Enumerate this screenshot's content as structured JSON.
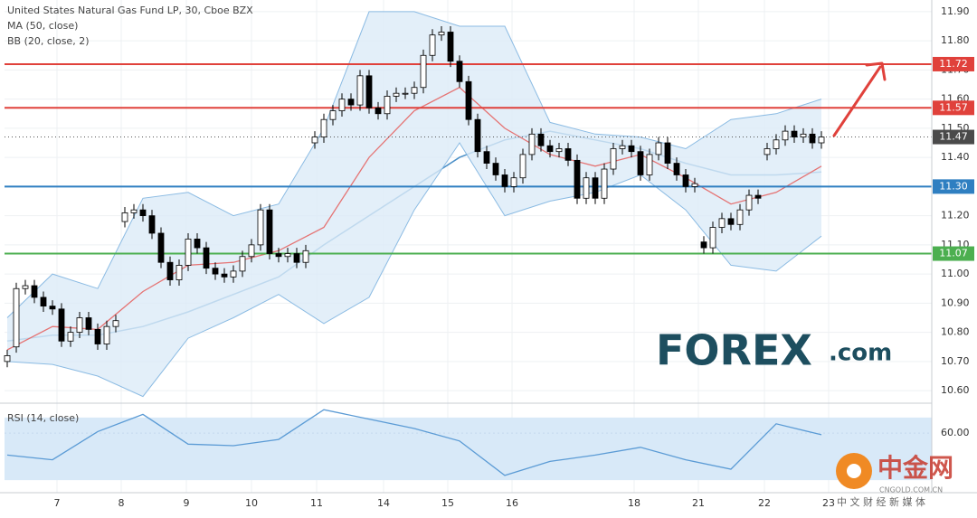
{
  "chart_data": [
    {
      "type": "candlestick",
      "title": "United States Natural Gas Fund LP, 30, Cboe BZX",
      "xlim": [
        -0.3,
        102.2
      ],
      "ylim": [
        10.56,
        11.94
      ],
      "xticks": [
        {
          "value": 5.5,
          "label": "7"
        },
        {
          "value": 12.6,
          "label": "8"
        },
        {
          "value": 19.8,
          "label": "9"
        },
        {
          "value": 27,
          "label": "10"
        },
        {
          "value": 34.2,
          "label": "11"
        },
        {
          "value": 41.6,
          "label": "14"
        },
        {
          "value": 48.7,
          "label": "15"
        },
        {
          "value": 55.8,
          "label": "16"
        },
        {
          "value": 69.3,
          "label": "18"
        },
        {
          "value": 76.4,
          "label": "21"
        },
        {
          "value": 83.7,
          "label": "22"
        },
        {
          "value": 90.8,
          "label": "23"
        }
      ],
      "yticks": [
        {
          "value": 10.6,
          "label": "10.60"
        },
        {
          "value": 10.7,
          "label": "10.70"
        },
        {
          "value": 10.8,
          "label": "10.80"
        },
        {
          "value": 10.9,
          "label": "10.90"
        },
        {
          "value": 11.0,
          "label": "11.00"
        },
        {
          "value": 11.1,
          "label": "11.10"
        },
        {
          "value": 11.2,
          "label": "11.20"
        },
        {
          "value": 11.3,
          "label": "11.30"
        },
        {
          "value": 11.4,
          "label": "11.40"
        },
        {
          "value": 11.5,
          "label": "11.50"
        },
        {
          "value": 11.6,
          "label": "11.60"
        },
        {
          "value": 11.7,
          "label": "11.70"
        },
        {
          "value": 11.8,
          "label": "11.80"
        },
        {
          "value": 11.9,
          "label": "11.90"
        }
      ],
      "grid": true,
      "up_color": "#ffffff",
      "down_color": "#000000",
      "open": [
        10.7,
        10.75,
        10.95,
        10.96,
        10.92,
        10.89,
        10.88,
        10.77,
        10.8,
        10.85,
        10.81,
        10.76,
        10.82,
        11.18,
        11.21,
        11.22,
        11.2,
        11.14,
        11.04,
        10.98,
        11.03,
        11.12,
        11.09,
        11.02,
        11.0,
        10.99,
        11.01,
        11.06,
        11.1,
        11.22,
        11.07,
        11.06,
        11.07,
        11.04,
        11.45,
        11.47,
        11.53,
        11.56,
        11.6,
        11.58,
        11.68,
        11.57,
        11.55,
        11.61,
        11.62,
        11.62,
        11.64,
        11.75,
        11.82,
        11.83,
        11.73,
        11.66,
        11.53,
        11.42,
        11.38,
        11.34,
        11.3,
        11.33,
        11.41,
        11.48,
        11.44,
        11.42,
        11.43,
        11.39,
        11.26,
        11.33,
        11.26,
        11.36,
        11.43,
        11.44,
        11.42,
        11.34,
        11.41,
        11.45,
        11.38,
        11.34,
        11.3,
        11.11,
        11.09,
        11.16,
        11.19,
        11.17,
        11.22,
        11.27,
        11.41,
        11.43,
        11.46,
        11.49,
        11.47,
        11.48,
        11.45
      ],
      "high": [
        10.74,
        10.97,
        10.98,
        10.98,
        10.94,
        10.91,
        10.9,
        10.82,
        10.87,
        10.87,
        10.83,
        10.84,
        10.86,
        11.23,
        11.24,
        11.24,
        11.22,
        11.16,
        11.06,
        11.05,
        11.14,
        11.14,
        11.11,
        11.04,
        11.02,
        11.03,
        11.08,
        11.12,
        11.24,
        11.24,
        11.09,
        11.09,
        11.09,
        11.1,
        11.49,
        11.55,
        11.58,
        11.62,
        11.62,
        11.7,
        11.7,
        11.59,
        11.63,
        11.64,
        11.64,
        11.66,
        11.77,
        11.84,
        11.85,
        11.85,
        11.75,
        11.68,
        11.55,
        11.44,
        11.4,
        11.36,
        11.35,
        11.43,
        11.5,
        11.5,
        11.46,
        11.45,
        11.45,
        11.41,
        11.35,
        11.35,
        11.38,
        11.45,
        11.46,
        11.46,
        11.44,
        11.43,
        11.47,
        11.47,
        11.4,
        11.36,
        11.33,
        11.13,
        11.18,
        11.21,
        11.21,
        11.24,
        11.29,
        11.29,
        11.45,
        11.48,
        11.51,
        11.51,
        11.5,
        11.5,
        11.49
      ],
      "low": [
        10.68,
        10.73,
        10.93,
        10.9,
        10.87,
        10.86,
        10.75,
        10.75,
        10.78,
        10.79,
        10.74,
        10.74,
        10.8,
        11.16,
        11.19,
        11.18,
        11.12,
        11.02,
        10.96,
        10.96,
        11.01,
        11.07,
        11.0,
        10.98,
        10.97,
        10.97,
        10.99,
        11.04,
        11.08,
        11.05,
        11.04,
        11.04,
        11.02,
        11.02,
        11.43,
        11.45,
        11.51,
        11.54,
        11.56,
        11.56,
        11.55,
        11.53,
        11.53,
        11.59,
        11.6,
        11.6,
        11.62,
        11.73,
        11.8,
        11.71,
        11.64,
        11.51,
        11.4,
        11.36,
        11.32,
        11.28,
        11.28,
        11.31,
        11.39,
        11.42,
        11.4,
        11.4,
        11.37,
        11.24,
        11.24,
        11.24,
        11.24,
        11.34,
        11.41,
        11.4,
        11.32,
        11.32,
        11.39,
        11.36,
        11.32,
        11.28,
        11.28,
        11.07,
        11.07,
        11.14,
        11.15,
        11.15,
        11.2,
        11.24,
        11.39,
        11.41,
        11.44,
        11.45,
        11.45,
        11.43,
        11.43
      ],
      "close": [
        10.72,
        10.95,
        10.96,
        10.92,
        10.89,
        10.88,
        10.77,
        10.8,
        10.85,
        10.81,
        10.76,
        10.82,
        10.84,
        11.21,
        11.22,
        11.2,
        11.14,
        11.04,
        10.98,
        11.03,
        11.12,
        11.09,
        11.02,
        11.0,
        10.99,
        11.01,
        11.06,
        11.1,
        11.22,
        11.07,
        11.06,
        11.07,
        11.04,
        11.08,
        11.47,
        11.53,
        11.56,
        11.6,
        11.58,
        11.68,
        11.57,
        11.55,
        11.61,
        11.62,
        11.62,
        11.64,
        11.75,
        11.82,
        11.83,
        11.73,
        11.66,
        11.53,
        11.42,
        11.38,
        11.34,
        11.3,
        11.33,
        11.41,
        11.48,
        11.44,
        11.42,
        11.43,
        11.39,
        11.26,
        11.33,
        11.26,
        11.36,
        11.43,
        11.44,
        11.42,
        11.34,
        11.41,
        11.45,
        11.38,
        11.34,
        11.3,
        11.31,
        11.09,
        11.16,
        11.19,
        11.17,
        11.22,
        11.27,
        11.26,
        11.43,
        11.46,
        11.49,
        11.47,
        11.48,
        11.45,
        11.47
      ],
      "overlays": [
        {
          "name": "MA (50, close)",
          "color": "#4a8fc7",
          "x": [
            0,
            5,
            10,
            15,
            20,
            25,
            30,
            35,
            40,
            45,
            50,
            55,
            60,
            65,
            70,
            75,
            80,
            85,
            90
          ],
          "values": [
            10.77,
            10.79,
            10.79,
            10.82,
            10.87,
            10.93,
            10.99,
            11.1,
            11.2,
            11.3,
            11.4,
            11.46,
            11.49,
            11.46,
            11.43,
            11.38,
            11.34,
            11.34,
            11.35
          ]
        },
        {
          "name": "BB (20, close, 2)",
          "color": "#e57373",
          "band_color": "#8bbbe3",
          "fill_color": "#dcebf8",
          "x": [
            0,
            5,
            10,
            15,
            20,
            25,
            30,
            35,
            40,
            45,
            50,
            55,
            60,
            65,
            70,
            75,
            80,
            85,
            90
          ],
          "basis": [
            10.74,
            10.82,
            10.81,
            10.94,
            11.03,
            11.04,
            11.08,
            11.16,
            11.4,
            11.56,
            11.64,
            11.5,
            11.41,
            11.37,
            11.41,
            11.33,
            11.24,
            11.28,
            11.37
          ],
          "upper": [
            10.85,
            11.0,
            10.95,
            11.26,
            11.28,
            11.2,
            11.24,
            11.5,
            11.9,
            11.9,
            11.85,
            11.85,
            11.52,
            11.48,
            11.47,
            11.43,
            11.53,
            11.55,
            11.6
          ],
          "lower": [
            10.7,
            10.69,
            10.65,
            10.58,
            10.78,
            10.85,
            10.93,
            10.83,
            10.92,
            11.22,
            11.45,
            11.2,
            11.25,
            11.28,
            11.34,
            11.22,
            11.03,
            11.01,
            11.13
          ]
        }
      ],
      "levels": [
        {
          "value": 11.72,
          "label": "11.72",
          "color": "#e0413b",
          "style": "solid"
        },
        {
          "value": 11.57,
          "label": "11.57",
          "color": "#e0413b",
          "style": "solid"
        },
        {
          "value": 11.3,
          "label": "11.30",
          "color": "#2f7fc1",
          "style": "solid"
        },
        {
          "value": 11.07,
          "label": "11.07",
          "color": "#4caf50",
          "style": "solid"
        },
        {
          "value": 11.47,
          "label": "11.47",
          "color": "#555555",
          "style": "dotted"
        }
      ]
    },
    {
      "type": "line",
      "title": "RSI (14, close)",
      "xlim": [
        -0.3,
        102.2
      ],
      "ylim": [
        22,
        78
      ],
      "yticks": [
        {
          "value": 60,
          "label": "60.00"
        }
      ],
      "band": [
        30,
        70
      ],
      "band_color": "#d8e9f8",
      "color": "#5b9bd5",
      "x": [
        0,
        5,
        10,
        15,
        20,
        25,
        30,
        35,
        40,
        45,
        50,
        55,
        60,
        65,
        70,
        75,
        80,
        85,
        90
      ],
      "values": [
        46,
        43,
        61,
        72,
        53,
        52,
        56,
        75,
        69,
        63,
        55,
        33,
        42,
        46,
        51,
        43,
        37,
        66,
        59
      ]
    }
  ],
  "logo": {
    "brand": "FOREX",
    "suffix": ".com"
  },
  "watermark": {
    "name": "中金网",
    "site": "CNGOLD.COM.CN",
    "slogan": "中 文 财 经 新 媒 体"
  }
}
